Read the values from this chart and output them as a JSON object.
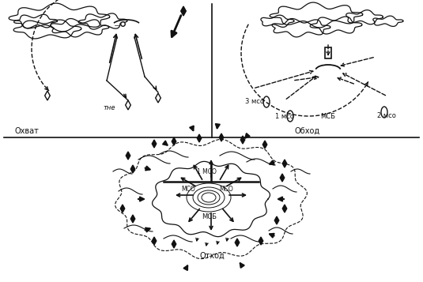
{
  "bg_color": "#ffffff",
  "lc": "#111111",
  "tc": "#111111",
  "label_ohvat": "Охват",
  "label_the": "тне",
  "label_obhod": "Обход",
  "label_3mco": "3 мсо",
  "label_1mco": "1 мсо",
  "label_2mco": "2 мсо",
  "label_mcb_top": "МСБ",
  "label_otkod": "Отход",
  "label_1mco_bot": "1 МСО",
  "label_mco_left": "МСО",
  "label_mco_right": "МСО",
  "label_mcb_bot": "МСБ"
}
